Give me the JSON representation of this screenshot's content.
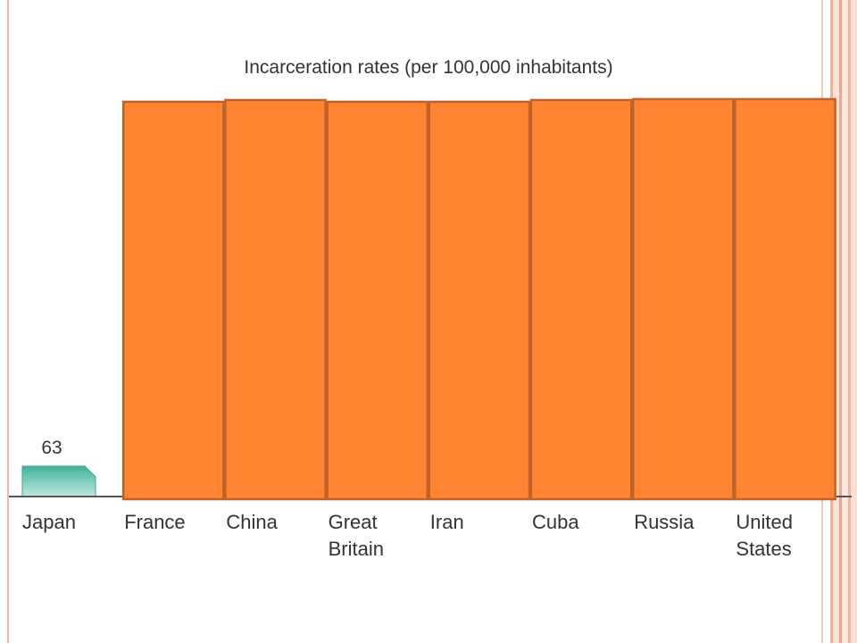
{
  "chart_data": {
    "type": "bar",
    "title": "Incarceration rates (per 100,000 inhabitants)",
    "xlabel": "",
    "ylabel": "",
    "categories": [
      [
        "Japan"
      ],
      [
        "France"
      ],
      [
        "China"
      ],
      [
        "Great",
        "Britain"
      ],
      [
        "Iran"
      ],
      [
        "Cuba"
      ],
      [
        "Russia"
      ],
      [
        "United",
        "States"
      ]
    ],
    "values": [
      63,
      null,
      null,
      null,
      null,
      null,
      null,
      null
    ],
    "value_labels": [
      "63",
      "",
      "",
      "",
      "",
      "",
      "",
      ""
    ],
    "bar_colors": [
      "#5fc2ad",
      "#ff8533",
      "#ff8533",
      "#ff8533",
      "#ff8533",
      "#ff8533",
      "#ff8533",
      "#ff8533"
    ],
    "cover_color": "#ff8533",
    "cover_border_color": "#c0622a",
    "axis_color": "#555555",
    "grid": false,
    "legend": "none"
  }
}
